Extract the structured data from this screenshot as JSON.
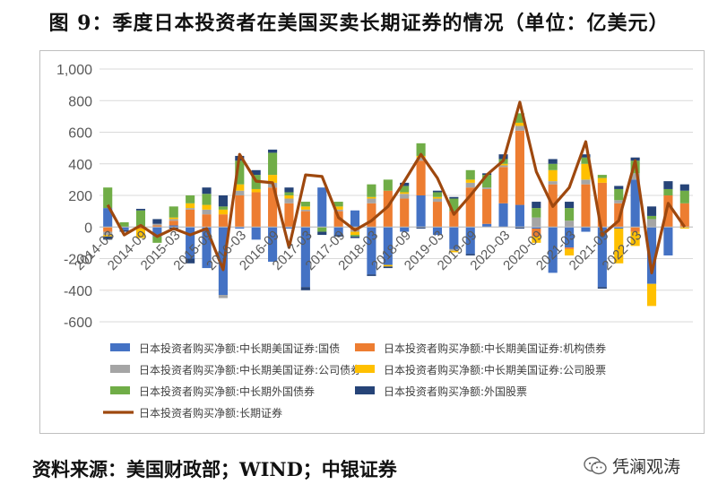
{
  "title": "图 9：季度日本投资者在美国买卖长期证券的情况（单位：亿美元）",
  "source": "资料来源：美国财政部；WIND；中银证券",
  "watermark": "凭澜观涛",
  "colors": {
    "gov": "#4472C4",
    "agency": "#ED7D31",
    "corp": "#A5A5A5",
    "equity": "#FFC000",
    "foreignbond": "#70AD47",
    "foreignequity": "#264478",
    "total": "#9E480E"
  },
  "chart_data": {
    "type": "bar",
    "stacked": true,
    "ylim": [
      -600,
      1000
    ],
    "yticks": [
      -600,
      -400,
      -200,
      0,
      200,
      400,
      600,
      800,
      1000
    ],
    "ytick_labels": [
      "-600",
      "-400",
      "-200",
      "0",
      "200",
      "400",
      "600",
      "800",
      "1,000"
    ],
    "categories": [
      "2014-03",
      "2014-06",
      "2014-09",
      "2014-12",
      "2015-03",
      "2015-06",
      "2015-09",
      "2015-12",
      "2016-03",
      "2016-06",
      "2016-09",
      "2016-12",
      "2017-03",
      "2017-06",
      "2017-09",
      "2017-12",
      "2018-03",
      "2018-06",
      "2018-09",
      "2018-12",
      "2019-03",
      "2019-06",
      "2019-09",
      "2019-12",
      "2020-03",
      "2020-06",
      "2020-09",
      "2020-12",
      "2021-03",
      "2021-06",
      "2021-09",
      "2021-12",
      "2022-03",
      "2022-06",
      "2022-09",
      "2022-12"
    ],
    "tick_labels": [
      "2014-03",
      "2014-09",
      "2015-03",
      "2015-09",
      "2016-03",
      "2016-09",
      "2017-03",
      "2017-09",
      "2018-03",
      "2018-09",
      "2019-03",
      "2019-09",
      "2020-03",
      "2020-09",
      "2021-03",
      "2021-09",
      "2022-03"
    ],
    "series": [
      {
        "name": "日本投资者购买净额:中长期美国证券:国债",
        "color_key": "gov",
        "values": [
          120,
          -20,
          5,
          -60,
          10,
          -200,
          -260,
          -430,
          -10,
          -80,
          -220,
          -10,
          -380,
          250,
          -50,
          105,
          -300,
          -240,
          -30,
          200,
          -50,
          -140,
          -170,
          20,
          150,
          140,
          -10,
          -290,
          -130,
          -30,
          -380,
          -10,
          300,
          -360,
          -180,
          0
        ]
      },
      {
        "name": "日本投资者购买净额:中长期美国证券:机构债券",
        "color_key": "agency",
        "values": [
          -30,
          0,
          -10,
          10,
          30,
          110,
          80,
          80,
          200,
          220,
          250,
          150,
          100,
          0,
          100,
          -20,
          150,
          230,
          180,
          220,
          160,
          100,
          250,
          220,
          230,
          470,
          -50,
          270,
          -10,
          270,
          280,
          150,
          -30,
          0,
          200,
          150
        ]
      },
      {
        "name": "日本投资者购买净额:中长期美国证券:公司债券",
        "color_key": "corp",
        "values": [
          -20,
          0,
          0,
          10,
          10,
          10,
          30,
          -20,
          30,
          0,
          30,
          30,
          10,
          0,
          10,
          -10,
          30,
          0,
          30,
          20,
          20,
          -10,
          30,
          10,
          10,
          30,
          60,
          20,
          40,
          30,
          0,
          20,
          40,
          50,
          0,
          0
        ]
      },
      {
        "name": "日本投资者购买净额:中长期美国证券:公司股票",
        "color_key": "equity",
        "values": [
          -10,
          0,
          -60,
          0,
          10,
          30,
          30,
          30,
          40,
          20,
          50,
          20,
          20,
          0,
          20,
          -20,
          10,
          -10,
          10,
          10,
          10,
          -10,
          20,
          0,
          10,
          20,
          -40,
          70,
          -40,
          100,
          30,
          -220,
          -90,
          -140,
          0,
          -10
        ]
      },
      {
        "name": "日本投资者购买净额:中长期外国债券",
        "color_key": "foreignbond",
        "values": [
          130,
          30,
          100,
          -40,
          70,
          50,
          70,
          20,
          150,
          90,
          140,
          20,
          30,
          -30,
          30,
          -10,
          80,
          70,
          40,
          80,
          30,
          80,
          60,
          80,
          30,
          60,
          60,
          40,
          80,
          40,
          20,
          70,
          80,
          20,
          40,
          80
        ]
      },
      {
        "name": "日本投资者购买净额:外国股票",
        "color_key": "foreignequity",
        "values": [
          -20,
          -10,
          10,
          30,
          -10,
          -30,
          40,
          70,
          30,
          30,
          20,
          30,
          -20,
          -20,
          -10,
          -10,
          -10,
          -10,
          20,
          -10,
          10,
          10,
          -10,
          10,
          30,
          -10,
          40,
          30,
          40,
          20,
          -10,
          20,
          20,
          60,
          50,
          40
        ]
      },
      {
        "name": "日本投资者购买净额:长期证券",
        "color_key": "total",
        "type": "line",
        "values": [
          140,
          -50,
          10,
          -60,
          -10,
          -50,
          -10,
          -270,
          460,
          290,
          280,
          -130,
          330,
          320,
          60,
          -20,
          40,
          130,
          290,
          460,
          310,
          80,
          200,
          330,
          420,
          790,
          350,
          130,
          250,
          540,
          -50,
          40,
          420,
          -290,
          150,
          0
        ]
      }
    ]
  }
}
